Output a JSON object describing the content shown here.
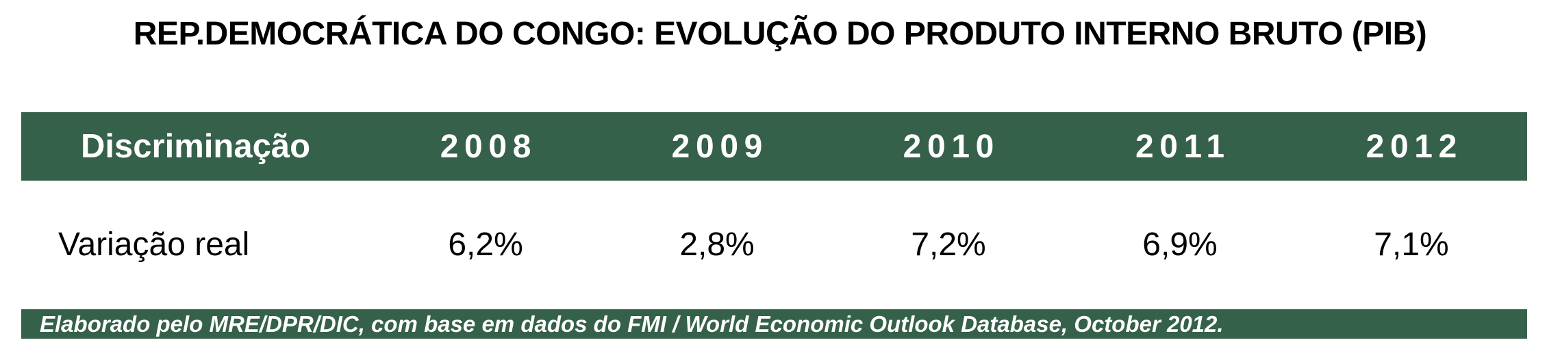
{
  "title": "REP.DEMOCRÁTICA DO CONGO: EVOLUÇÃO DO PRODUTO INTERNO BRUTO (PIB)",
  "colors": {
    "band_green": "#35604A",
    "title_text": "#000000",
    "band_text": "#FFFFFF",
    "background": "#FFFFFF"
  },
  "table": {
    "header": {
      "label": "Discriminação",
      "years": [
        "2008",
        "2009",
        "2010",
        "2011",
        "2012"
      ]
    },
    "rows": [
      {
        "label": "Variação real",
        "values": [
          "6,2%",
          "2,8%",
          "7,2%",
          "6,9%",
          "7,1%"
        ]
      }
    ]
  },
  "footer": {
    "text": "Elaborado pelo MRE/DPR/DIC, com base em dados do FMI / World Economic Outlook Database, October 2012."
  },
  "chart_data": {
    "type": "table",
    "title": "REP.DEMOCRÁTICA DO CONGO: EVOLUÇÃO DO PRODUTO INTERNO BRUTO (PIB)",
    "categories": [
      "2008",
      "2009",
      "2010",
      "2011",
      "2012"
    ],
    "series": [
      {
        "name": "Variação real",
        "values_text": [
          "6,2%",
          "2,8%",
          "7,2%",
          "6,9%",
          "7,1%"
        ],
        "values": [
          6.2,
          2.8,
          7.2,
          6.9,
          7.1
        ],
        "unit": "% (variação real do PIB)"
      }
    ],
    "source_note": "Elaborado pelo MRE/DPR/DIC, com base em dados do FMI / World Economic Outlook Database, October 2012."
  }
}
